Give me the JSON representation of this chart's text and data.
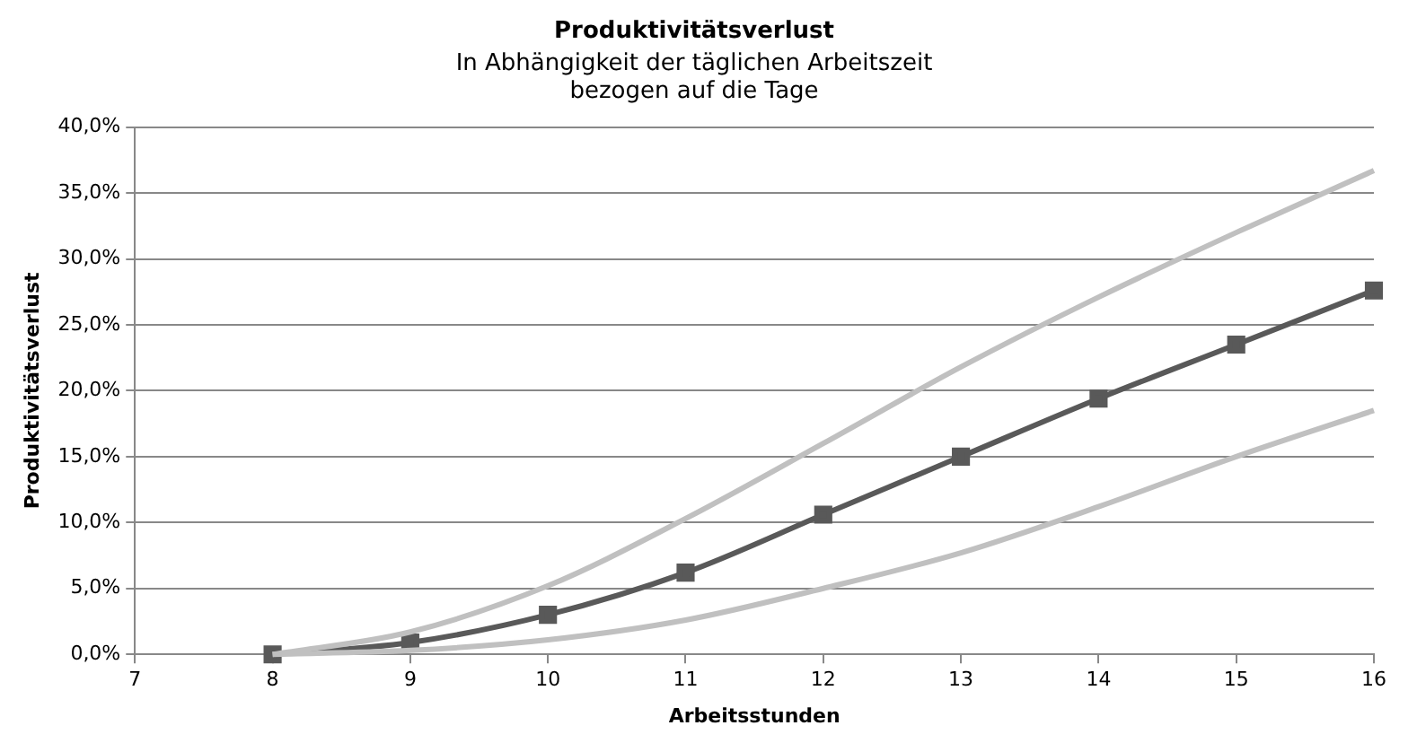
{
  "chart_data": {
    "type": "line",
    "title": "Produktivitätsverlust",
    "subtitle": "In Abhängigkeit der täglichen Arbeitszeit\nbezogen auf die Tage",
    "xlabel": "Arbeitsstunden",
    "ylabel": "Produktivitätsverlust",
    "x": [
      8,
      9,
      10,
      11,
      12,
      13,
      14,
      15,
      16
    ],
    "series": [
      {
        "color": "#c0c0c0",
        "marker": "none",
        "values": [
          0,
          1.7,
          5.2,
          10.3,
          16,
          21.8,
          27.1,
          32,
          36.7
        ]
      },
      {
        "color": "#c0c0c0",
        "marker": "none",
        "values": [
          0,
          0.3,
          1.1,
          2.6,
          5,
          7.7,
          11.2,
          15,
          18.5
        ]
      },
      {
        "color": "#595959",
        "marker": "square",
        "values": [
          0,
          0.9,
          3,
          6.2,
          10.6,
          15,
          19.4,
          23.5,
          27.6
        ]
      }
    ],
    "xlim": [
      7,
      16
    ],
    "xticks": [
      7,
      8,
      9,
      10,
      11,
      12,
      13,
      14,
      15,
      16
    ],
    "ylim": [
      0,
      40
    ],
    "yticks": [
      {
        "value": 0,
        "label": "0,0%"
      },
      {
        "value": 5,
        "label": "5,0%"
      },
      {
        "value": 10,
        "label": "10,0%"
      },
      {
        "value": 15,
        "label": "15,0%"
      },
      {
        "value": 20,
        "label": "20,0%"
      },
      {
        "value": 25,
        "label": "25,0%"
      },
      {
        "value": 30,
        "label": "30,0%"
      },
      {
        "value": 35,
        "label": "35,0%"
      },
      {
        "value": 40,
        "label": "40,0%"
      }
    ],
    "grid": "y",
    "legend": false,
    "line_style": "solid"
  }
}
